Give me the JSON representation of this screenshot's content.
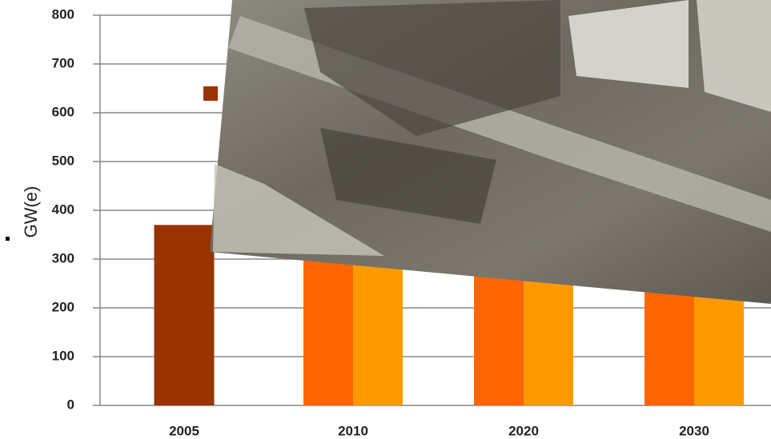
{
  "chart_data": {
    "type": "bar",
    "y_label": "GW(e)",
    "categories": [
      "2005",
      "2010",
      "2020",
      "2030"
    ],
    "series": [
      {
        "color": "#993300",
        "values": [
          370,
          null,
          null,
          null
        ]
      },
      {
        "color": "#ff6600",
        "values": [
          null,
          380,
          410,
          440
        ]
      },
      {
        "color": "#ff9900",
        "values": [
          null,
          400,
          480,
          560
        ]
      }
    ],
    "ylim": [
      0,
      800
    ],
    "yticks": [
      0,
      100,
      200,
      300,
      400,
      500,
      600,
      700,
      800
    ],
    "grid": true
  }
}
